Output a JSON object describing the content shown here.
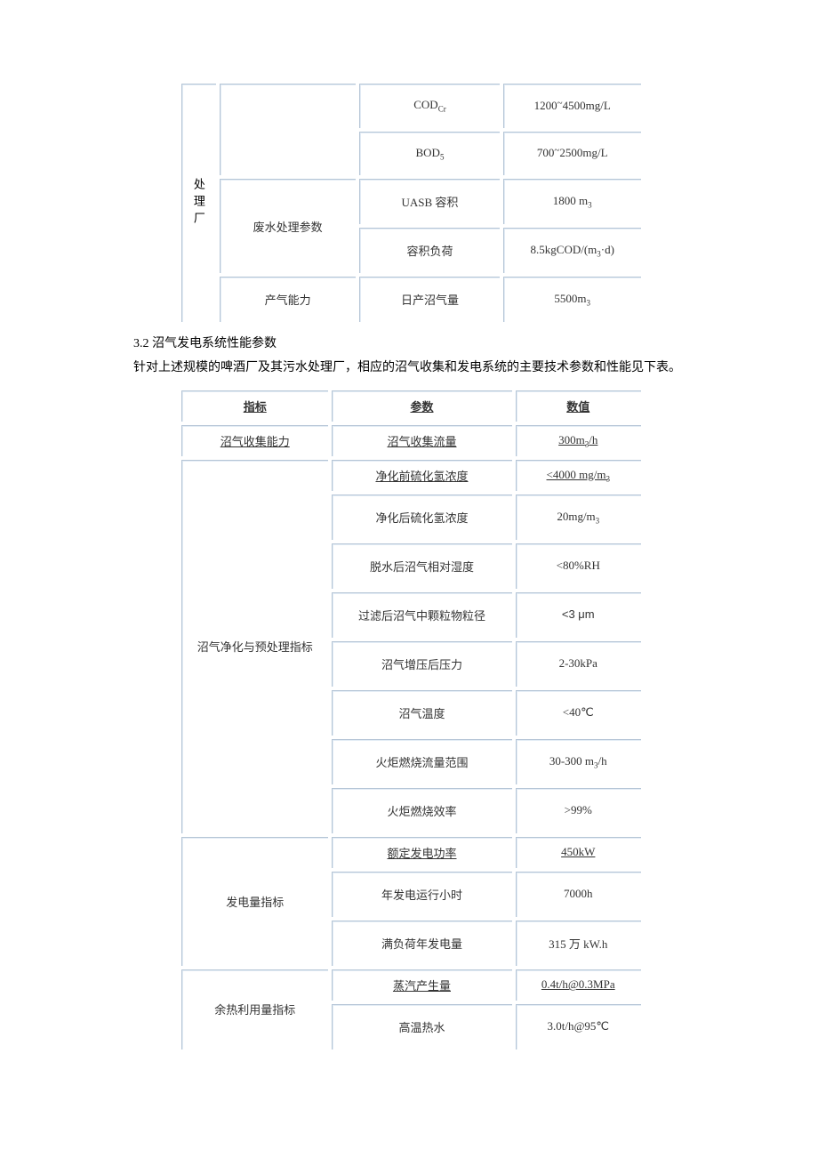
{
  "section": {
    "heading_3_2": "3.2 沼气发电系统性能参数",
    "body_3_2": "针对上述规模的啤酒厂及其污水处理厂，相应的沼气收集和发电系统的主要技术参数和性能见下表。"
  },
  "table1": {
    "left_label": "处理厂",
    "rows": {
      "r1_cat": "",
      "r1_param": "COD",
      "r1_param_sub": "Cr",
      "r1_val_a": "1200",
      "r1_val_b": "4500mg/L",
      "r2_param": "BOD",
      "r2_param_sub": "5",
      "r2_val_a": "700",
      "r2_val_b": "2500mg/L",
      "r3_cat": "废水处理参数",
      "r3_param": "UASB 容积",
      "r3_val": "1800 m",
      "r3_val_sub": "3",
      "r4_param": "容积负荷",
      "r4_val_a": "8.5kgCOD/(m",
      "r4_val_sub": "3",
      "r4_val_b": "·d)",
      "r5_cat": "产气能力",
      "r5_param": "日产沼气量",
      "r5_val": "5500m",
      "r5_val_sub": "3"
    }
  },
  "table2": {
    "headers": {
      "h1": "指标",
      "h2": "参数",
      "h3": "数值"
    },
    "rows": [
      {
        "cat": "沼气收集能力",
        "param": "沼气收集流量",
        "val_pre": "300m",
        "val_sub": "3",
        "val_post": "/h",
        "underline": true
      },
      {
        "cat": "沼气净化与预处理指标",
        "rowspan": 8,
        "param": "净化前硫化氢浓度",
        "val_pre": "<4000 mg/m",
        "val_sub": "3",
        "val_post": "",
        "underline": true
      },
      {
        "param": "净化后硫化氢浓度",
        "val_pre": "20mg/m",
        "val_sub": "3",
        "val_post": ""
      },
      {
        "param": "脱水后沼气相对湿度",
        "val_pre": "<80%RH",
        "val_sub": "",
        "val_post": ""
      },
      {
        "param": "过滤后沼气中颗粒物粒径",
        "val_mu": "<3 μm"
      },
      {
        "param": "沼气增压后压力",
        "val_pre": "2-30kPa",
        "val_sub": "",
        "val_post": ""
      },
      {
        "param": "沼气温度",
        "val_pre": "<40℃",
        "val_sub": "",
        "val_post": ""
      },
      {
        "param": "火炬燃烧流量范围",
        "val_pre": "30-300 m",
        "val_sub": "3",
        "val_post": "/h"
      },
      {
        "param": "火炬燃烧效率",
        "val_pre": ">99%",
        "val_sub": "",
        "val_post": ""
      },
      {
        "cat": "发电量指标",
        "rowspan": 3,
        "param": "额定发电功率",
        "val_pre": "450kW",
        "val_sub": "",
        "val_post": "",
        "underline": true
      },
      {
        "param": "年发电运行小时",
        "val_pre": "7000h",
        "val_sub": "",
        "val_post": ""
      },
      {
        "param": "满负荷年发电量",
        "val_pre": "315 万 kW.h",
        "val_sub": "",
        "val_post": ""
      },
      {
        "cat": "余热利用量指标",
        "rowspan": 2,
        "param": "蒸汽产生量",
        "val_pre": "0.4t/h@0.3MPa",
        "val_sub": "",
        "val_post": "",
        "underline": true
      },
      {
        "param": "高温热水",
        "val_pre": "3.0t/h@95℃",
        "val_sub": "",
        "val_post": ""
      }
    ]
  },
  "style": {
    "cell_shadow_outer": "#b5c5d6",
    "cell_shadow_inner": "#e3ecf5",
    "text_color": "#333333",
    "bg": "#ffffff"
  }
}
